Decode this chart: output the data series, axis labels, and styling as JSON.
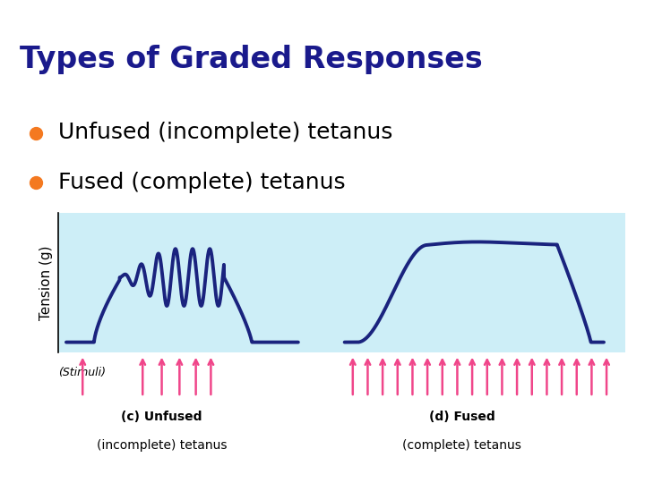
{
  "title": "Types of Graded Responses",
  "title_color": "#1a1a8c",
  "title_bar_color": "#2ab5a0",
  "title_fontsize": 24,
  "bullet1": "Unfused (incomplete) tetanus",
  "bullet2": "Fused (complete) tetanus",
  "bullet_color": "#f47920",
  "bullet_text_color": "#000000",
  "bullet_fontsize": 18,
  "plot_bg_color": "#cdeef7",
  "line_color": "#1a237e",
  "line_width": 2.8,
  "ylabel": "Tension (g)",
  "stimuli_label": "(Stimuli)",
  "stimuli_color": "#f0468a",
  "label_c_line1": "(c) Unfused",
  "label_c_line2": "(incomplete) tetanus",
  "label_d_line1": "(d) Fused",
  "label_d_line2": "(complete) tetanus",
  "label_fontsize": 10,
  "bg_color": "#ffffff"
}
